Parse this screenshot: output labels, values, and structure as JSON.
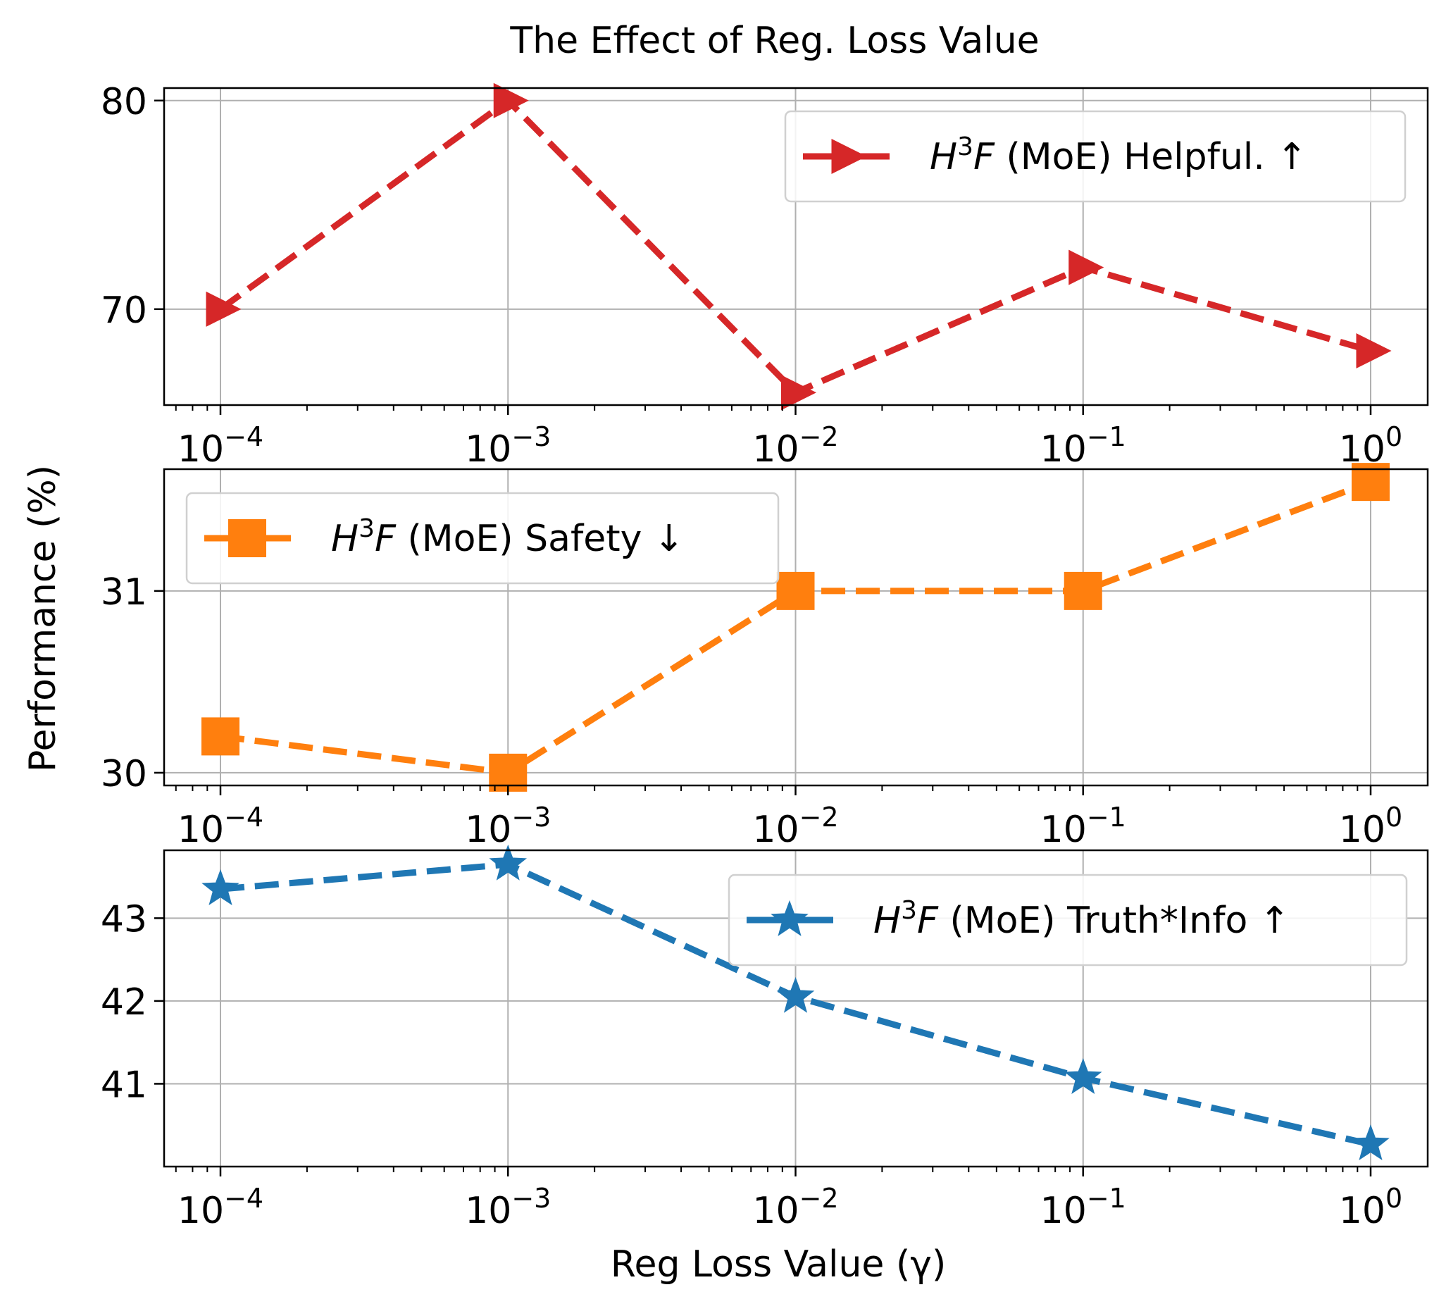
{
  "chart_data": {
    "type": "line",
    "title": "The Effect of Reg. Loss Value",
    "xlabel": "Reg Loss Value (γ)",
    "ylabel": "Performance (%)",
    "x_scale": "log",
    "x": [
      0.0001,
      0.001,
      0.01,
      0.1,
      1
    ],
    "xticks": [
      {
        "base": "10",
        "exp": "−4"
      },
      {
        "base": "10",
        "exp": "−3"
      },
      {
        "base": "10",
        "exp": "−2"
      },
      {
        "base": "10",
        "exp": "−1"
      },
      {
        "base": "10",
        "exp": "0"
      }
    ],
    "grid": true,
    "subplots": [
      {
        "name": "helpful",
        "series_name": "H3F (MoE) Helpful. ↑",
        "legend": {
          "pre": "H",
          "sup": "3",
          "post": "F",
          "rest": " (MoE) Helpful. ↑",
          "placement": "upper-right"
        },
        "marker": "triangle-right",
        "color": "#d62728",
        "values": [
          70,
          80,
          66,
          72,
          68
        ],
        "ylim": [
          65.4,
          80.6
        ],
        "yticks": [
          70,
          80
        ]
      },
      {
        "name": "safety",
        "series_name": "H3F (MoE) Safety ↓",
        "legend": {
          "pre": "H",
          "sup": "3",
          "post": "F",
          "rest": " (MoE) Safety ↓",
          "placement": "upper-left"
        },
        "marker": "square",
        "color": "#ff7f0e",
        "values": [
          30.2,
          30.0,
          31.0,
          31.0,
          31.6
        ],
        "ylim": [
          29.93,
          31.67
        ],
        "yticks": [
          30,
          31
        ]
      },
      {
        "name": "truthinfo",
        "series_name": "H3F (MoE) Truth*Info ↑",
        "legend": {
          "pre": "H",
          "sup": "3",
          "post": "F",
          "rest": " (MoE) Truth*Info ↑",
          "placement": "upper-right"
        },
        "marker": "star",
        "color": "#1f77b4",
        "values": [
          43.35,
          43.65,
          42.05,
          41.07,
          40.27
        ],
        "ylim": [
          40.0,
          43.82
        ],
        "yticks": [
          41,
          42,
          43
        ]
      }
    ]
  }
}
